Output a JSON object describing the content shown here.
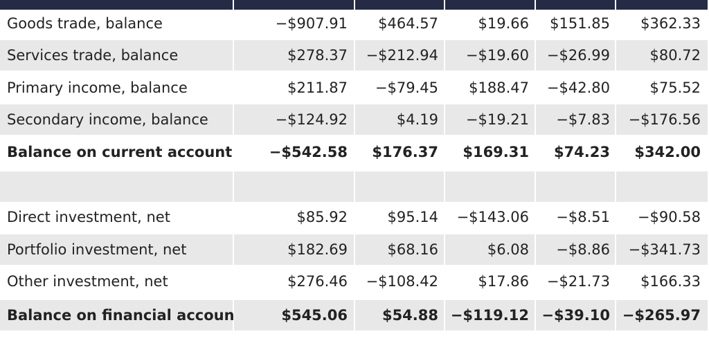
{
  "table": {
    "rows": [
      {
        "label": "Goods trade, balance",
        "values": [
          "−$907.91",
          "$464.57",
          "$19.66",
          "$151.85",
          "$362.33"
        ]
      },
      {
        "label": "Services trade, balance",
        "values": [
          "$278.37",
          "−$212.94",
          "−$19.60",
          "−$26.99",
          "$80.72"
        ]
      },
      {
        "label": "Primary income, balance",
        "values": [
          "$211.87",
          "−$79.45",
          "$188.47",
          "−$42.80",
          "$75.52"
        ]
      },
      {
        "label": "Secondary income, balance",
        "values": [
          "−$124.92",
          "$4.19",
          "−$19.21",
          "−$7.83",
          "−$176.56"
        ]
      },
      {
        "label": "Balance on current account",
        "values": [
          "−$542.58",
          "$176.37",
          "$169.31",
          "$74.23",
          "$342.00"
        ]
      },
      {
        "label": "",
        "values": [
          "",
          "",
          "",
          "",
          ""
        ]
      },
      {
        "label": "Direct investment, net",
        "values": [
          "$85.92",
          "$95.14",
          "−$143.06",
          "−$8.51",
          "−$90.58"
        ]
      },
      {
        "label": "Portfolio investment, net",
        "values": [
          "$182.69",
          "$68.16",
          "$6.08",
          "−$8.86",
          "−$341.73"
        ]
      },
      {
        "label": "Other investment, net",
        "values": [
          "$276.46",
          "−$108.42",
          "$17.86",
          "−$21.73",
          "$166.33"
        ]
      },
      {
        "label": "Balance on financial account",
        "values": [
          "$545.06",
          "$54.88",
          "−$119.12",
          "−$39.10",
          "−$265.97"
        ]
      }
    ]
  },
  "colors": {
    "header": "#252b45",
    "stripe": "#e8e8e8",
    "text": "#222222"
  }
}
